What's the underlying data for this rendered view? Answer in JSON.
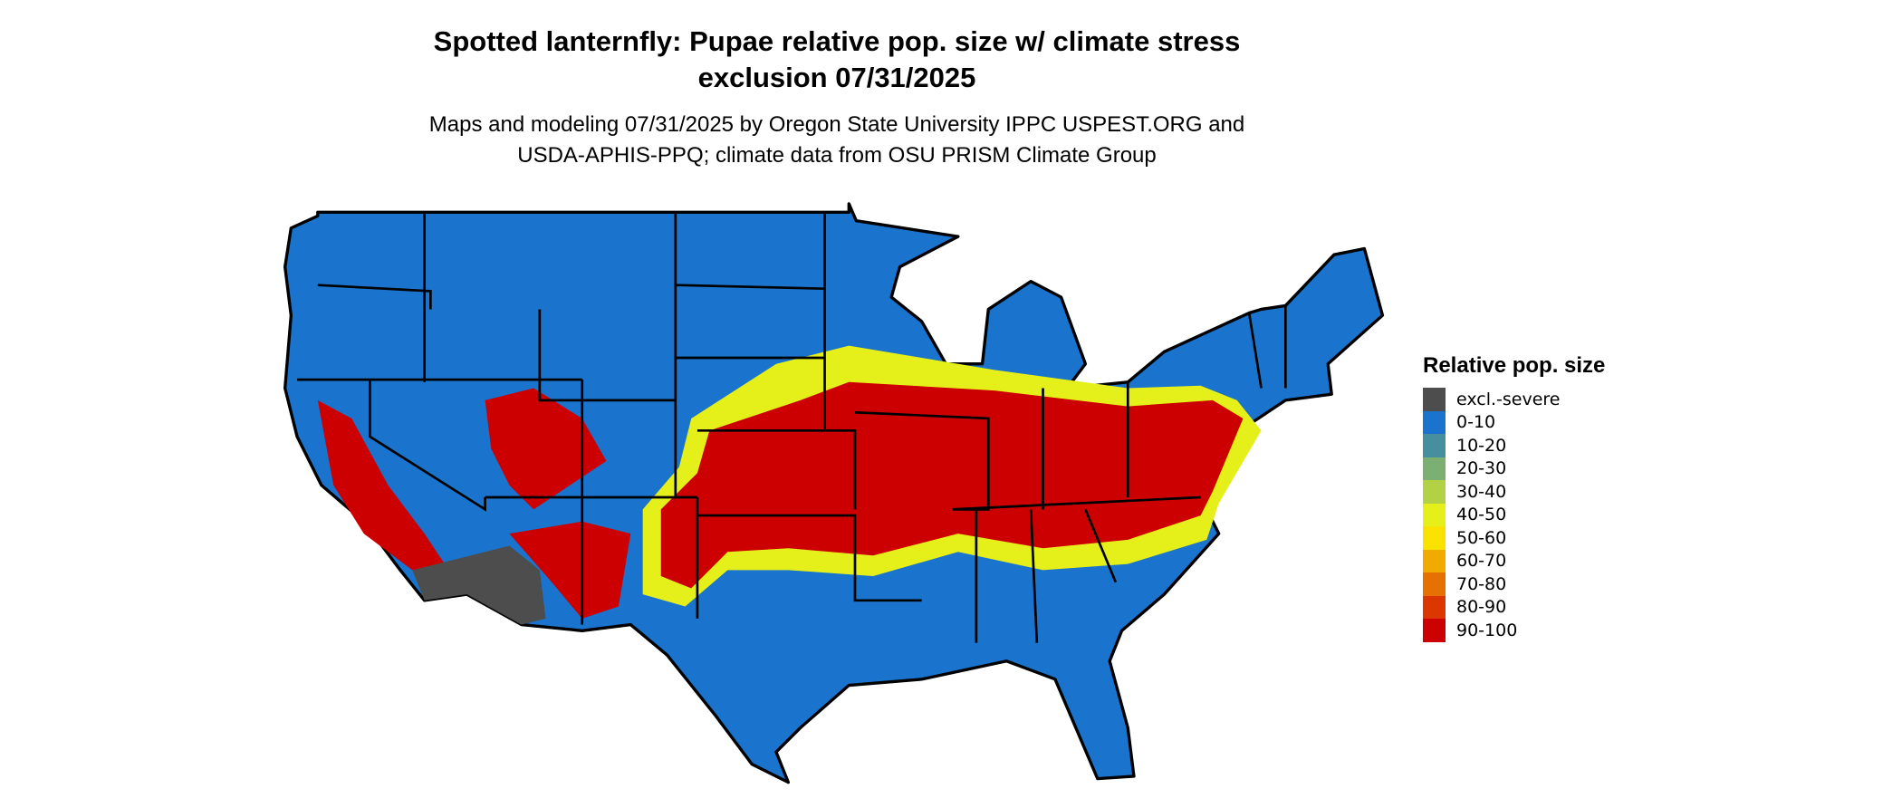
{
  "title_line1": "Spotted lanternfly: Pupae relative pop. size w/ climate stress",
  "title_line2": "exclusion 07/31/2025",
  "subtitle_line1": "Maps and modeling 07/31/2025 by Oregon State University IPPC USPEST.ORG and",
  "subtitle_line2": "USDA-APHIS-PPQ; climate data from OSU PRISM Climate Group",
  "legend": {
    "title": "Relative pop. size",
    "items": [
      {
        "label": "excl.-severe",
        "color": "#4d4d4d"
      },
      {
        "label": "0-10",
        "color": "#1a73cc"
      },
      {
        "label": "10-20",
        "color": "#468f9e"
      },
      {
        "label": "20-30",
        "color": "#7caf72"
      },
      {
        "label": "30-40",
        "color": "#b3d145"
      },
      {
        "label": "40-50",
        "color": "#e5f01a"
      },
      {
        "label": "50-60",
        "color": "#f9e100"
      },
      {
        "label": "60-70",
        "color": "#f0aa00"
      },
      {
        "label": "70-80",
        "color": "#e57100"
      },
      {
        "label": "80-90",
        "color": "#dc3700"
      },
      {
        "label": "90-100",
        "color": "#cc0000"
      }
    ]
  }
}
